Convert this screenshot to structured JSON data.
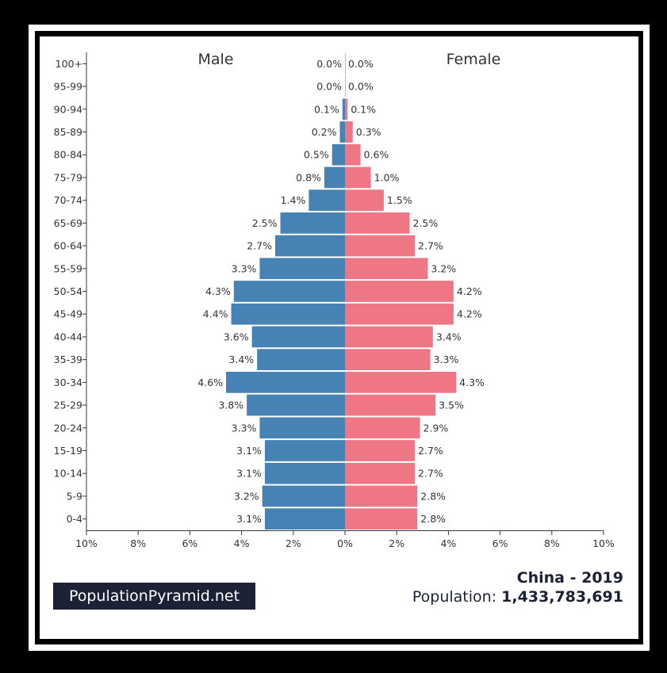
{
  "colors": {
    "male": "#4682b4",
    "female": "#ef7785",
    "text": "#333333",
    "axis": "#333344",
    "brand_bg": "#1b2235"
  },
  "footer": {
    "brand": "PopulationPyramid.net",
    "country_year": "China - 2019",
    "population_label": "Population:",
    "population_value": "1,433,783,691"
  },
  "chart_data": {
    "type": "bar",
    "orientation": "horizontal-pyramid",
    "left_label": "Male",
    "right_label": "Female",
    "categories": [
      "100+",
      "95-99",
      "90-94",
      "85-89",
      "80-84",
      "75-79",
      "70-74",
      "65-69",
      "60-64",
      "55-59",
      "50-54",
      "45-49",
      "40-44",
      "35-39",
      "30-34",
      "25-29",
      "20-24",
      "15-19",
      "10-14",
      "5-9",
      "0-4"
    ],
    "series": [
      {
        "name": "Male",
        "values": [
          0.0,
          0.0,
          0.1,
          0.2,
          0.5,
          0.8,
          1.4,
          2.5,
          2.7,
          3.3,
          4.3,
          4.4,
          3.6,
          3.4,
          4.6,
          3.8,
          3.3,
          3.1,
          3.1,
          3.2,
          3.1
        ]
      },
      {
        "name": "Female",
        "values": [
          0.0,
          0.0,
          0.1,
          0.3,
          0.6,
          1.0,
          1.5,
          2.5,
          2.7,
          3.2,
          4.2,
          4.2,
          3.4,
          3.3,
          4.3,
          3.5,
          2.9,
          2.7,
          2.7,
          2.8,
          2.8
        ]
      }
    ],
    "xlim": [
      -10,
      10
    ],
    "x_ticks": [
      "10%",
      "8%",
      "6%",
      "4%",
      "2%",
      "0%",
      "2%",
      "4%",
      "6%",
      "8%",
      "10%"
    ],
    "value_suffix": "%",
    "grid": false
  }
}
